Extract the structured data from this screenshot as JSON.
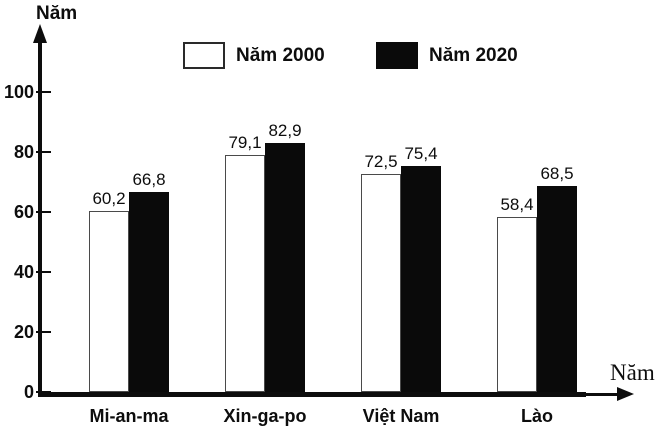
{
  "colors": {
    "axis": "#0d0d0d",
    "bar_2000_fill": "#ffffff",
    "bar_2000_border": "#4a4a4a",
    "bar_2020_fill": "#0a0a0a",
    "text": "#0d0d0d",
    "background": "#ffffff"
  },
  "chart_data": {
    "type": "bar",
    "title": "",
    "categories": [
      "Mi-an-ma",
      "Xin-ga-po",
      "Việt Nam",
      "Lào"
    ],
    "series": [
      {
        "name": "Năm 2000",
        "values": [
          60.2,
          79.1,
          72.5,
          58.4
        ],
        "labels": [
          "60,2",
          "79,1",
          "72,5",
          "58,4"
        ],
        "fill": "white"
      },
      {
        "name": "Năm 2020",
        "values": [
          66.8,
          82.9,
          75.4,
          68.5
        ],
        "labels": [
          "66,8",
          "82,9",
          "75,4",
          "68,5"
        ],
        "fill": "black"
      }
    ],
    "y_axis": {
      "label": "Năm",
      "ticks": [
        0,
        20,
        40,
        60,
        80,
        100
      ],
      "range": [
        0,
        100
      ]
    },
    "x_axis": {
      "label": "Năm"
    },
    "legend_position": "top",
    "grid": false
  }
}
